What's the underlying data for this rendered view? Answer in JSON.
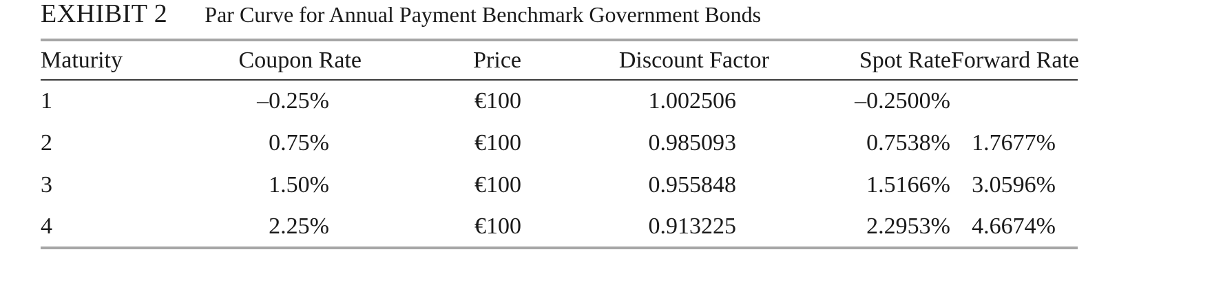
{
  "exhibit": {
    "label": "EXHIBIT 2",
    "title": "Par Curve for Annual Payment Benchmark Government Bonds"
  },
  "table": {
    "headers": [
      "Maturity",
      "Coupon Rate",
      "Price",
      "Discount Factor",
      "Spot Rate",
      "Forward Rate"
    ],
    "rows": [
      [
        "1",
        "–0.25%",
        "€100",
        "1.002506",
        "–0.2500%",
        ""
      ],
      [
        "2",
        "0.75%",
        "€100",
        "0.985093",
        "0.7538%",
        "1.7677%"
      ],
      [
        "3",
        "1.50%",
        "€100",
        "0.955848",
        "1.5166%",
        "3.0596%"
      ],
      [
        "4",
        "2.25%",
        "€100",
        "0.913225",
        "2.2953%",
        "4.6674%"
      ]
    ]
  },
  "colors": {
    "rule_heavy": "#a6a6a6",
    "rule_light": "#3a3a3a",
    "text": "#1a1a1a"
  }
}
